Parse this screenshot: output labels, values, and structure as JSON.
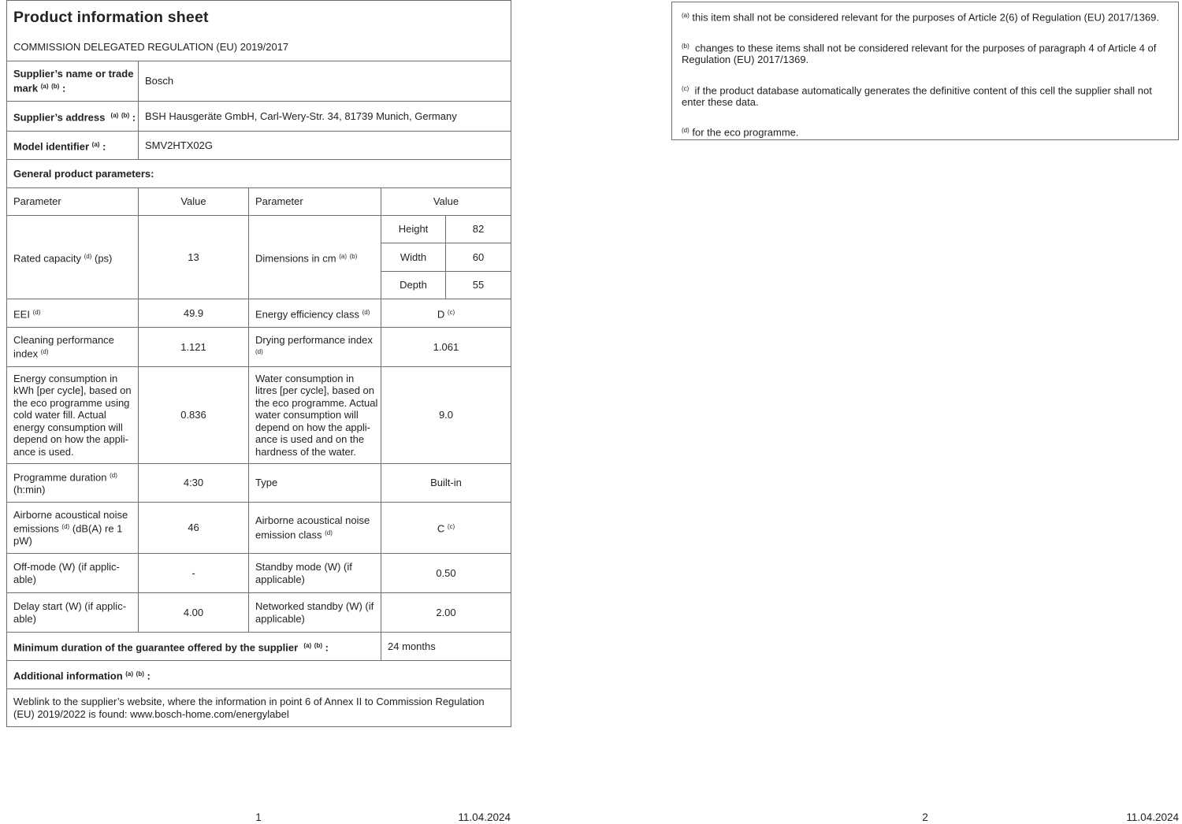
{
  "page1": {
    "title": "Product information sheet",
    "regulation": "COMMISSION DELEGATED REGULATION (EU) 2019/2017",
    "supplier_rows": [
      {
        "label": "Supplier’s name or trade\nmark ^(a) ^(b) :",
        "value": "Bosch"
      },
      {
        "label": "Supplier’s address  ^(a) ^(b) :",
        "value": "BSH Hausgeräte GmbH, Carl-Wery-Str. 34, 81739 Munich, Germany"
      },
      {
        "label": "Model identifier ^(a) :",
        "value": "SMV2HTX02G"
      }
    ],
    "section_general": "General product parameters:",
    "col_headers": {
      "param1": "Parameter",
      "value1": "Value",
      "param2": "Parameter",
      "value2": "Value"
    },
    "capacity": {
      "label": "Rated capacity ^(d) (ps)",
      "value": "13"
    },
    "dimensions": {
      "label": "Dimensions in cm ^(a) ^(b)",
      "rows": [
        {
          "name": "Height",
          "value": "82"
        },
        {
          "name": "Width",
          "value": "60"
        },
        {
          "name": "Depth",
          "value": "55"
        }
      ]
    },
    "rows": {
      "eei": {
        "p1": "EEI ^(d)",
        "v1": "49.9",
        "p2": "Energy efficiency class ^(d)",
        "v2": "D ^(c)"
      },
      "cleaning": {
        "p1": "Cleaning performance\nindex ^(d)",
        "v1": "1.121",
        "p2": "Drying performance index\n^(d)",
        "v2": "1.061"
      },
      "energy": {
        "p1": "Energy consumption in\nkWh [per cycle], based on\nthe eco programme using\ncold water fill. Actual\nenergy consumption will\ndepend on how the appli-\nance is used.",
        "v1": "0.836",
        "p2": "Water consumption in\nlitres [per cycle], based on\nthe eco programme. Actual\nwater consumption will\ndepend on how the appli-\nance is used and on the\nhardness of the water.",
        "v2": "9.0"
      },
      "programme": {
        "p1": "Programme duration ^(d)\n(h:min)",
        "v1": "4:30",
        "p2": "Type",
        "v2": "Built-in"
      },
      "airborne": {
        "p1": "Airborne acoustical noise\nemissions ^(d) (dB(A) re 1\npW)",
        "v1": "46",
        "p2": "Airborne acoustical noise\nemission class ^(d)",
        "v2": "C ^(c)"
      },
      "offmode": {
        "p1": "Off-mode (W) (if applic-\nable)",
        "v1": "-",
        "p2": "Standby mode (W) (if\napplicable)",
        "v2": "0.50"
      },
      "delay": {
        "p1": "Delay start (W) (if applic-\nable)",
        "v1": "4.00",
        "p2": "Networked standby (W) (if\napplicable)",
        "v2": "2.00"
      }
    },
    "guarantee": {
      "label": "Minimum duration of the guarantee offered by the supplier  ^(a) ^(b) :",
      "value": "24 months"
    },
    "additional_info": "Additional information ^(a) ^(b) :",
    "weblink": "Weblink to the supplier’s website, where the information in point 6 of Annex II to Commission Regulation\n(EU) 2019/2022 is found: www.bosch-home.com/energylabel",
    "footer": {
      "page": "1",
      "date": "11.04.2024"
    }
  },
  "page2": {
    "footnotes": [
      "^(a) this item shall not be considered relevant for the purposes of Article 2(6) of Regulation (EU) 2017/1369.",
      "^(b)  changes to these items shall not be considered relevant for the purposes of paragraph 4 of Article 4 of\nRegulation (EU) 2017/1369.",
      "^(c)  if the product database automatically generates the definitive content of this cell the supplier shall not\nenter these data.",
      "^(d) for the eco programme."
    ],
    "footer": {
      "page": "2",
      "date": "11.04.2024"
    }
  }
}
